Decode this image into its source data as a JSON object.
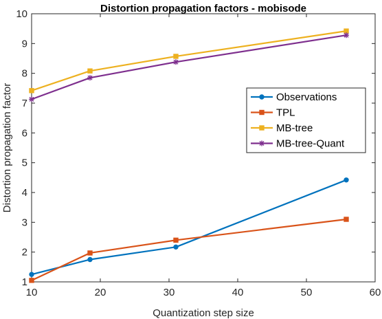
{
  "chart_data": {
    "type": "line",
    "title": "Distortion propagation factors - mobisode",
    "xlabel": "Quantization step size",
    "ylabel": "Distortion propagation factor",
    "xlim": [
      10,
      60
    ],
    "ylim": [
      1,
      10
    ],
    "xticks": [
      10,
      20,
      30,
      40,
      50,
      60
    ],
    "yticks": [
      1,
      2,
      3,
      4,
      5,
      6,
      7,
      8,
      9,
      10
    ],
    "grid": false,
    "legend_position": "right",
    "series": [
      {
        "name": "Observations",
        "color": "#0072BD",
        "marker": "circle",
        "x": [
          10,
          18.5,
          31,
          55.8
        ],
        "y": [
          1.25,
          1.75,
          2.17,
          4.42
        ]
      },
      {
        "name": "TPL",
        "color": "#D95319",
        "marker": "square",
        "x": [
          10,
          18.5,
          31,
          55.8
        ],
        "y": [
          1.05,
          1.97,
          2.4,
          3.1
        ]
      },
      {
        "name": "MB-tree",
        "color": "#EDB120",
        "marker": "square",
        "x": [
          10,
          18.5,
          31,
          55.8
        ],
        "y": [
          7.42,
          8.08,
          8.57,
          9.42
        ]
      },
      {
        "name": "MB-tree-Quant",
        "color": "#7E2F8E",
        "marker": "star",
        "x": [
          10,
          18.5,
          31,
          55.8
        ],
        "y": [
          7.13,
          7.85,
          8.38,
          9.28
        ]
      }
    ]
  }
}
